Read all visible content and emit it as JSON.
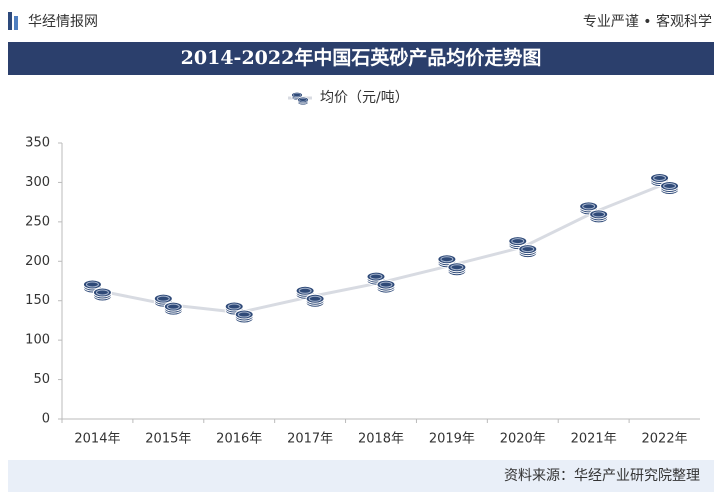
{
  "header": {
    "brand": "华经情报网",
    "slogan": "专业严谨 • 客观科学"
  },
  "chart_data": {
    "type": "line",
    "title": "2014-2022年中国石英砂产品均价走势图",
    "categories": [
      "2014年",
      "2015年",
      "2016年",
      "2017年",
      "2018年",
      "2019年",
      "2020年",
      "2021年",
      "2022年"
    ],
    "series": [
      {
        "name": "均价（元/吨）",
        "color": "#d8dbe2",
        "values": [
          163,
          145,
          135,
          155,
          173,
          195,
          218,
          262,
          298
        ]
      }
    ],
    "ylim": [
      0,
      350
    ],
    "yticks": [
      0,
      50,
      100,
      150,
      200,
      250,
      300,
      350
    ],
    "grid": false,
    "legend": "top"
  },
  "footer": {
    "source": "资料来源：华经产业研究院整理"
  }
}
